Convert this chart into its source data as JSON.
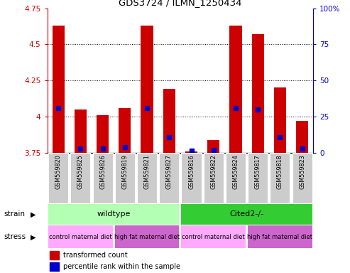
{
  "title": "GDS3724 / ILMN_1250434",
  "samples": [
    "GSM559820",
    "GSM559825",
    "GSM559826",
    "GSM559819",
    "GSM559821",
    "GSM559827",
    "GSM559816",
    "GSM559822",
    "GSM559824",
    "GSM559817",
    "GSM559818",
    "GSM559823"
  ],
  "bar_values": [
    4.63,
    4.05,
    4.01,
    4.06,
    4.63,
    4.19,
    3.76,
    3.84,
    4.63,
    4.57,
    4.2,
    3.97
  ],
  "blue_dot_values": [
    4.06,
    3.78,
    3.78,
    3.79,
    4.06,
    3.86,
    3.765,
    3.77,
    4.06,
    4.05,
    3.86,
    3.78
  ],
  "ylim_left": [
    3.75,
    4.75
  ],
  "ylim_right": [
    0,
    100
  ],
  "yticks_left": [
    3.75,
    4.0,
    4.25,
    4.5,
    4.75
  ],
  "yticks_right": [
    0,
    25,
    50,
    75,
    100
  ],
  "ytick_labels_left": [
    "3.75",
    "4",
    "4.25",
    "4.5",
    "4.75"
  ],
  "ytick_labels_right": [
    "0",
    "25",
    "50",
    "75",
    "100%"
  ],
  "bar_color": "#cc0000",
  "dot_color": "#0000cc",
  "bar_bottom": 3.75,
  "strain_labels": [
    "wildtype",
    "Cited2-/-"
  ],
  "strain_ranges": [
    [
      0,
      6
    ],
    [
      6,
      12
    ]
  ],
  "strain_color_wt": "#b3ffb3",
  "strain_color_cited": "#33cc33",
  "stress_groups": [
    {
      "label": "control maternal diet",
      "range": [
        0,
        3
      ],
      "color": "#ffaaff"
    },
    {
      "label": "high fat maternal diet",
      "range": [
        3,
        6
      ],
      "color": "#cc66cc"
    },
    {
      "label": "control maternal diet",
      "range": [
        6,
        9
      ],
      "color": "#ffaaff"
    },
    {
      "label": "high fat maternal diet",
      "range": [
        9,
        12
      ],
      "color": "#cc66cc"
    }
  ],
  "legend_items": [
    {
      "label": "transformed count",
      "color": "#cc0000"
    },
    {
      "label": "percentile rank within the sample",
      "color": "#0000cc"
    }
  ],
  "bg_color": "#ffffff",
  "tick_label_color_left": "#cc0000",
  "tick_label_color_right": "#0000cc",
  "grid_color": "#000000",
  "sample_bg_color": "#cccccc",
  "grid_yticks": [
    4.0,
    4.25,
    4.5
  ]
}
